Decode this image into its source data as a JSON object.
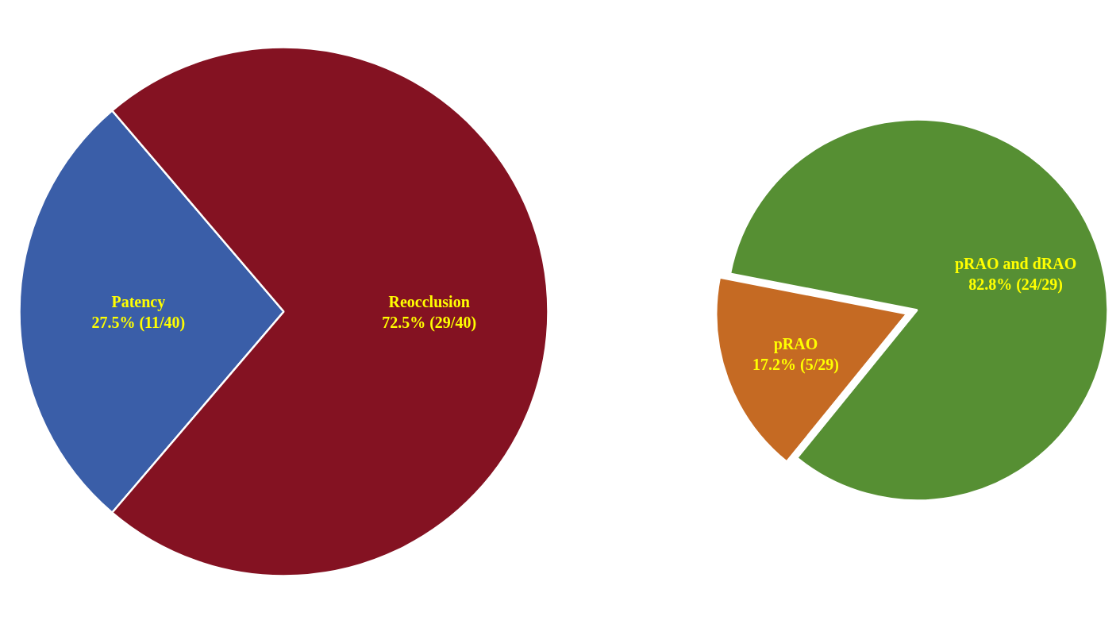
{
  "chart_data": [
    {
      "type": "pie",
      "categories": [
        "Patency",
        "Reocclusion"
      ],
      "values": [
        27.5,
        72.5
      ],
      "colors": [
        "#3a5ea8",
        "#841222"
      ],
      "value_labels": [
        "27.5% (11/40)",
        "72.5% (29/40)"
      ]
    },
    {
      "type": "pie",
      "categories": [
        "pRAO",
        "pRAO and dRAO"
      ],
      "values": [
        17.2,
        82.8
      ],
      "colors": [
        "#c56a23",
        "#568f33"
      ],
      "value_labels": [
        "17.2% (5/29)",
        "82.8% (24/29)"
      ]
    }
  ]
}
